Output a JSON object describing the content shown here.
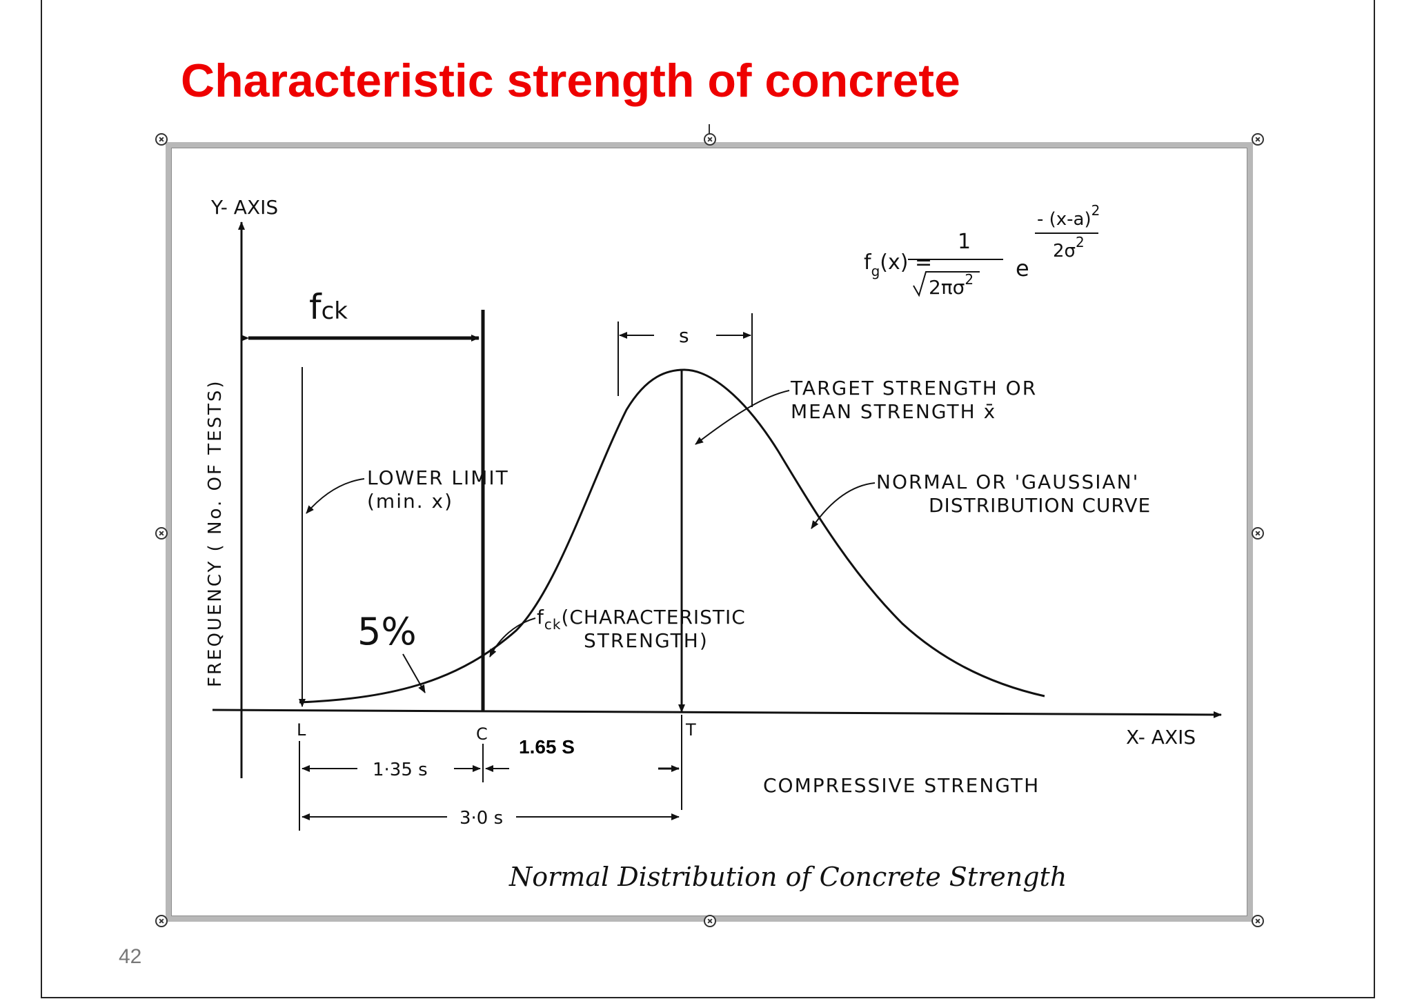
{
  "slide": {
    "title": "Characteristic strength of concrete",
    "page_number": "42"
  },
  "figure": {
    "y_axis_label": "Y- AXIS",
    "y_axis_title": "FREQUENCY ( No. OF TESTS)",
    "x_axis_label": "X- AXIS",
    "x_axis_title": "COMPRESSIVE STRENGTH",
    "fck_label": "f",
    "fck_sub": "ck",
    "formula": {
      "lhs": "f",
      "lhs_sub": "g",
      "lhs_arg": "(x) =",
      "numerator": "1",
      "denominator": "2πσ",
      "denominator_exp": "2",
      "base": "e",
      "exp_numerator": "- (x-a)",
      "exp_numerator_exp": "2",
      "exp_denominator": "2σ",
      "exp_denominator_exp": "2"
    },
    "s_label": "s",
    "target_label_line1": "TARGET STRENGTH OR",
    "target_label_line2": "MEAN STRENGTH x̄",
    "lower_limit_line1": "LOWER LIMIT",
    "lower_limit_line2": "(min. x)",
    "normal_curve_line1": "NORMAL OR 'GAUSSIAN'",
    "normal_curve_line2": "DISTRIBUTION CURVE",
    "five_percent": "5%",
    "characteristic_prefix": "f",
    "characteristic_sub": "ck",
    "characteristic_line1": "(CHARACTERISTIC",
    "characteristic_line2": "STRENGTH)",
    "tick_L": "L",
    "tick_C": "C",
    "tick_T": "T",
    "dim_135s": "1·35 s",
    "dim_165s": "1.65 S",
    "dim_30s": "3·0 s",
    "caption": "Normal Distribution of Concrete Strength"
  }
}
